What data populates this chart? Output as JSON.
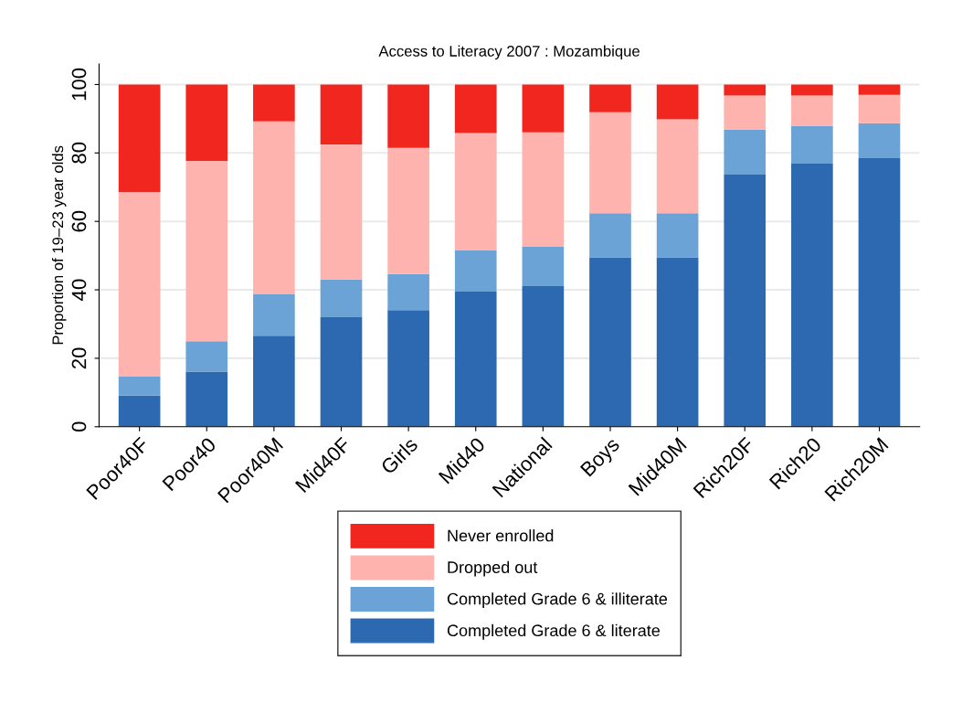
{
  "chart_data": {
    "type": "bar",
    "title": "Access to Literacy 2007 : Mozambique",
    "ylabel": "Proportion of 19–23 year olds",
    "categories": [
      "Poor40F",
      "Poor40",
      "Poor40M",
      "Mid40F",
      "Girls",
      "Mid40",
      "National",
      "Boys",
      "Mid40M",
      "Rich20F",
      "Rich20",
      "Rich20M"
    ],
    "stacked": true,
    "series": [
      {
        "name": "Completed Grade 6 & literate",
        "color": "#2d69b0",
        "values": [
          9.1,
          16.1,
          26.6,
          32,
          34.1,
          39.5,
          41.1,
          49.5,
          49.5,
          73.7,
          76.9,
          78.5
        ]
      },
      {
        "name": "Completed Grade 6 & illiterate",
        "color": "#6ca3d6",
        "values": [
          5.7,
          8.9,
          12.1,
          11,
          10.5,
          12.1,
          11.6,
          12.9,
          12.9,
          13.1,
          11,
          10.2
        ]
      },
      {
        "name": "Dropped out",
        "color": "#ffb3ae",
        "values": [
          53.7,
          52.7,
          50.5,
          39.5,
          36.9,
          34.2,
          33.3,
          29.5,
          27.4,
          10,
          8.9,
          8.3
        ]
      },
      {
        "name": "Never enrolled",
        "color": "#f0261f",
        "values": [
          31.5,
          22.3,
          10.8,
          17.5,
          18.5,
          14.2,
          14,
          8.1,
          10.2,
          3.2,
          3.2,
          3
        ]
      }
    ],
    "ylim": [
      0,
      106
    ],
    "yticks": [
      0,
      20,
      40,
      60,
      80,
      100
    ],
    "grid": "y",
    "legend": "bottom"
  }
}
